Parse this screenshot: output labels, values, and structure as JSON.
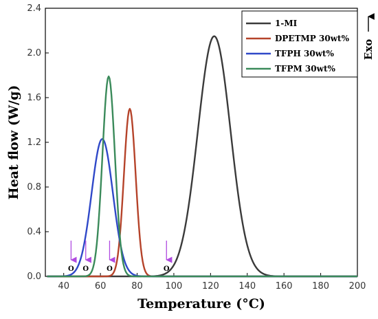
{
  "chart_data": {
    "type": "line",
    "xlabel": "Temperature (°C)",
    "ylabel": "Heat flow (W/g)",
    "exo_label": "Exo",
    "xlim": [
      30,
      200
    ],
    "ylim": [
      0,
      2.4
    ],
    "xticks": [
      40,
      60,
      80,
      100,
      120,
      140,
      160,
      180,
      200
    ],
    "yticks": [
      "0.0",
      "0.4",
      "0.8",
      "1.2",
      "1.6",
      "2.0",
      "2.4"
    ],
    "legend_position": "top-right",
    "grid": false,
    "series": [
      {
        "name": "1-MI",
        "color": "#3a3a3a",
        "peak_x": 122,
        "peak_y": 2.15,
        "sigma": 8.9
      },
      {
        "name": "DPETMP 30wt%",
        "color": "#b5432a",
        "peak_x": 76,
        "peak_y": 1.5,
        "sigma": 3.2
      },
      {
        "name": "TFPH 30wt%",
        "color": "#2f48c8",
        "peak_x": 61,
        "peak_y": 1.23,
        "sigma": 5.8
      },
      {
        "name": "TFPM 30wt%",
        "color": "#3a8a5a",
        "peak_x": 64.5,
        "peak_y": 1.79,
        "sigma": 3.4
      }
    ],
    "onset_markers": [
      {
        "x": 44,
        "label": "O"
      },
      {
        "x": 52,
        "label": "O"
      },
      {
        "x": 65,
        "label": "O"
      },
      {
        "x": 96,
        "label": "O"
      }
    ],
    "marker_color": "#b04ae0"
  }
}
